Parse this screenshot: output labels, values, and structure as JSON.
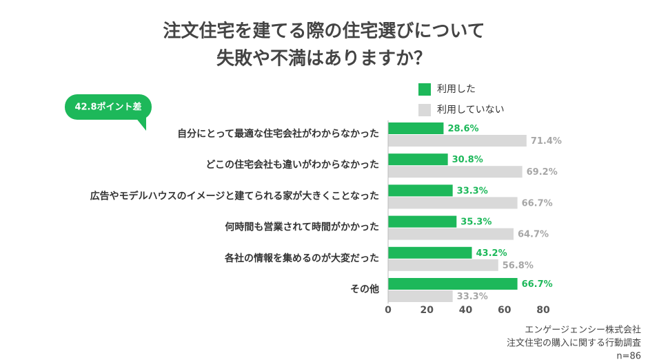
{
  "chart_data": {
    "type": "bar",
    "orientation": "horizontal",
    "title": [
      "注文住宅を建てる際の住宅選びについて",
      "失敗や不満はありますか？"
    ],
    "annotation": "42.8ポイント差",
    "categories": [
      "自分にとって最適な住宅会社がわからなかった",
      "どこの住宅会社も違いがわからなかった",
      "広告やモデルハウスのイメージと建てられる家が大きくことなった",
      "何時間も営業されて時間がかかった",
      "各社の情報を集めるのが大変だった",
      "その他"
    ],
    "series": [
      {
        "name": "利用した",
        "color": "#1db85a",
        "values": [
          28.6,
          30.8,
          33.3,
          35.3,
          43.2,
          66.7
        ],
        "value_labels": [
          "28.6%",
          "30.8%",
          "33.3%",
          "35.3%",
          "43.2%",
          "66.7%"
        ]
      },
      {
        "name": "利用していない",
        "color": "#d9d9d9",
        "values": [
          71.4,
          69.2,
          66.7,
          64.7,
          56.8,
          33.3
        ],
        "value_labels": [
          "71.4%",
          "69.2%",
          "66.7%",
          "64.7%",
          "56.8%",
          "33.3%"
        ]
      }
    ],
    "xlim": [
      0,
      80
    ],
    "xticks": [
      0,
      20,
      40,
      60,
      80
    ],
    "source": [
      "エンゲージェンシー株式会社",
      "注文住宅の購入に関する行動調査",
      "n=86"
    ]
  }
}
